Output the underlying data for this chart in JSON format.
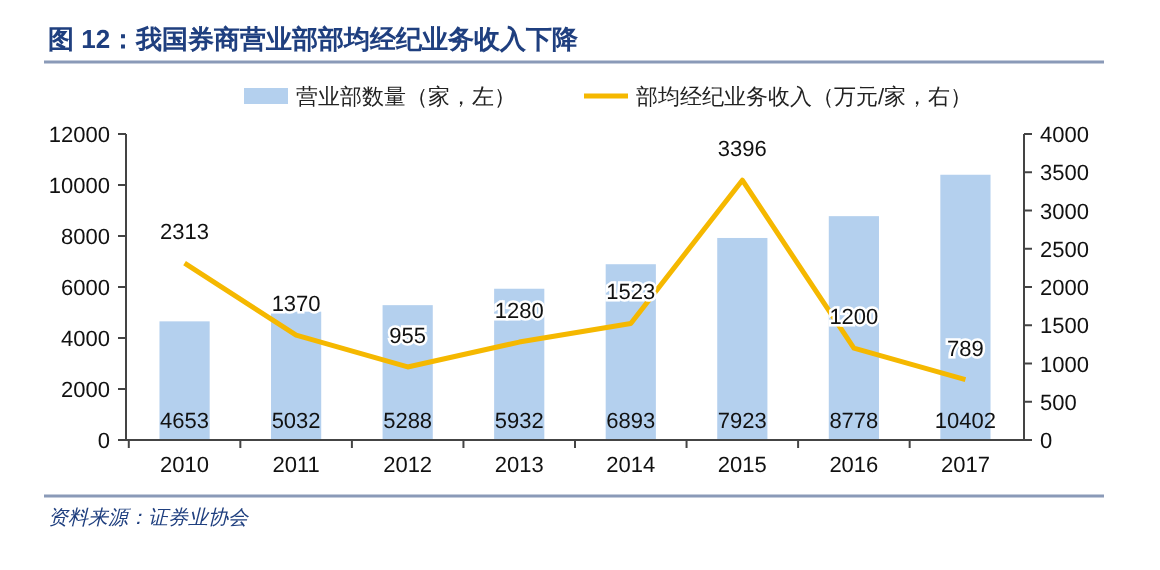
{
  "chart_data": {
    "type": "bar",
    "title": "图 12：我国券商营业部部均经纪业务收入下降",
    "categories": [
      "2010",
      "2011",
      "2012",
      "2013",
      "2014",
      "2015",
      "2016",
      "2017"
    ],
    "series": [
      {
        "name": "营业部数量（家，左）",
        "color": "#b4d0ee",
        "values": [
          4653,
          5032,
          5288,
          5932,
          6893,
          7923,
          8778,
          10402
        ]
      },
      {
        "name": "部均经纪业务收入（万元/家，右）",
        "type": "line",
        "axis": "y2",
        "color": "#f5b800",
        "values": [
          2313,
          1370,
          955,
          1280,
          1523,
          3396,
          1200,
          789
        ]
      }
    ],
    "ylim": [
      0,
      12000
    ],
    "yticks": [
      0,
      2000,
      4000,
      6000,
      8000,
      10000,
      12000
    ],
    "y2lim": [
      0,
      4000
    ],
    "y2ticks": [
      0,
      500,
      1000,
      1500,
      2000,
      2500,
      3000,
      3500,
      4000
    ],
    "data_labels": true,
    "legend": "top",
    "grid": false,
    "marker": "none",
    "annotations": [
      "资料来源：证券业协会"
    ]
  }
}
